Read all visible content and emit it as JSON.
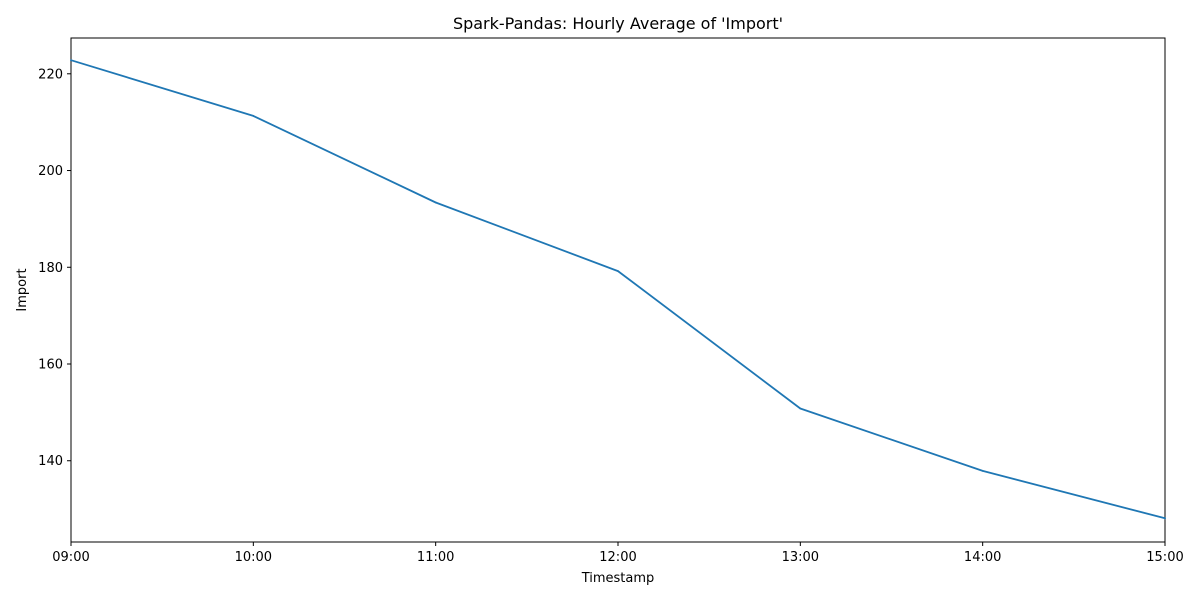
{
  "chart_data": {
    "type": "line",
    "title": "Spark-Pandas: Hourly Average of 'Import'",
    "xlabel": "Timestamp",
    "ylabel": "Import",
    "x": [
      "09:00",
      "10:00",
      "11:00",
      "12:00",
      "13:00",
      "14:00",
      "15:00"
    ],
    "x_ticks": [
      "09:00",
      "10:00",
      "11:00",
      "12:00",
      "13:00",
      "14:00",
      "15:00"
    ],
    "series": [
      {
        "values": [
          222.8,
          211.3,
          193.4,
          179.2,
          150.8,
          137.9,
          128.1
        ],
        "color": "#1f77b4"
      }
    ],
    "ylim": [
      123.2,
      227.4
    ],
    "y_ticks": [
      140,
      160,
      180,
      200,
      220
    ],
    "grid": false,
    "legend": "none"
  }
}
